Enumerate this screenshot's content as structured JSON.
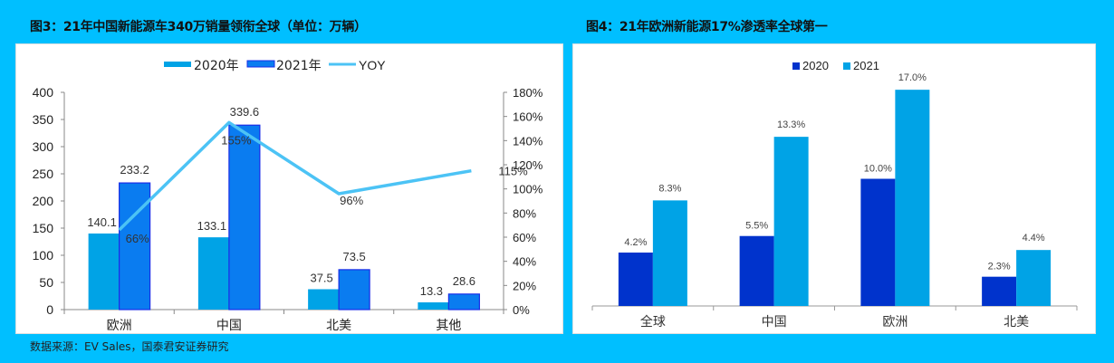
{
  "left_chart": {
    "title": "图3：21年中国新能源车340万销量领衔全球（单位：万辆）",
    "legend": [
      "2020年",
      "2021年",
      "YOY"
    ],
    "colors": {
      "y2020": "#00a3e6",
      "y2021": "#0a7cf0",
      "y2021_border": "#1a2ee8",
      "yoy": "#4cc3f5"
    },
    "y_left_ticks": [
      "0",
      "50",
      "100",
      "150",
      "200",
      "250",
      "300",
      "350",
      "400"
    ],
    "y_right_ticks": [
      "0%",
      "20%",
      "40%",
      "60%",
      "80%",
      "100%",
      "120%",
      "140%",
      "160%",
      "180%"
    ],
    "categories": [
      "欧洲",
      "中国",
      "北美",
      "其他"
    ],
    "labels_2020": [
      "140.1",
      "133.1",
      "37.5",
      "13.3"
    ],
    "labels_2021": [
      "233.2",
      "339.6",
      "73.5",
      "28.6"
    ],
    "labels_yoy": [
      "66%",
      "155%",
      "96%",
      "115%"
    ]
  },
  "right_chart": {
    "title": "图4：21年欧洲新能源17%渗透率全球第一",
    "legend": [
      "2020",
      "2021"
    ],
    "colors": {
      "y2020": "#0033cc",
      "y2021": "#00a3e6"
    },
    "categories": [
      "全球",
      "中国",
      "欧洲",
      "北美"
    ],
    "labels_2020": [
      "4.2%",
      "5.5%",
      "10.0%",
      "2.3%"
    ],
    "labels_2021": [
      "8.3%",
      "13.3%",
      "17.0%",
      "4.4%"
    ]
  },
  "source": "数据来源：EV Sales，国泰君安证券研究",
  "chart_data": [
    {
      "type": "bar",
      "title": "图3：21年中国新能源车340万销量领衔全球（单位：万辆）",
      "categories": [
        "欧洲",
        "中国",
        "北美",
        "其他"
      ],
      "series": [
        {
          "name": "2020年",
          "type": "bar",
          "axis": "left",
          "values": [
            140.1,
            133.1,
            37.5,
            13.3
          ]
        },
        {
          "name": "2021年",
          "type": "bar",
          "axis": "left",
          "values": [
            233.2,
            339.6,
            73.5,
            28.6
          ]
        },
        {
          "name": "YOY",
          "type": "line",
          "axis": "right",
          "values": [
            66,
            155,
            96,
            115
          ],
          "unit": "%"
        }
      ],
      "xlabel": "",
      "ylabel": "万辆",
      "ylim": [
        0,
        400
      ],
      "y2lim": [
        0,
        180
      ],
      "y_ticks": [
        0,
        50,
        100,
        150,
        200,
        250,
        300,
        350,
        400
      ],
      "y2_ticks": [
        "0%",
        "20%",
        "40%",
        "60%",
        "80%",
        "100%",
        "120%",
        "140%",
        "160%",
        "180%"
      ],
      "legend_position": "top",
      "grid": false
    },
    {
      "type": "bar",
      "title": "图4：21年欧洲新能源17%渗透率全球第一",
      "categories": [
        "全球",
        "中国",
        "欧洲",
        "北美"
      ],
      "series": [
        {
          "name": "2020",
          "values": [
            4.2,
            5.5,
            10.0,
            2.3
          ],
          "unit": "%"
        },
        {
          "name": "2021",
          "values": [
            8.3,
            13.3,
            17.0,
            4.4
          ],
          "unit": "%"
        }
      ],
      "xlabel": "",
      "ylabel": "渗透率",
      "y_axis_visible": false,
      "legend_position": "top",
      "grid": false
    }
  ]
}
